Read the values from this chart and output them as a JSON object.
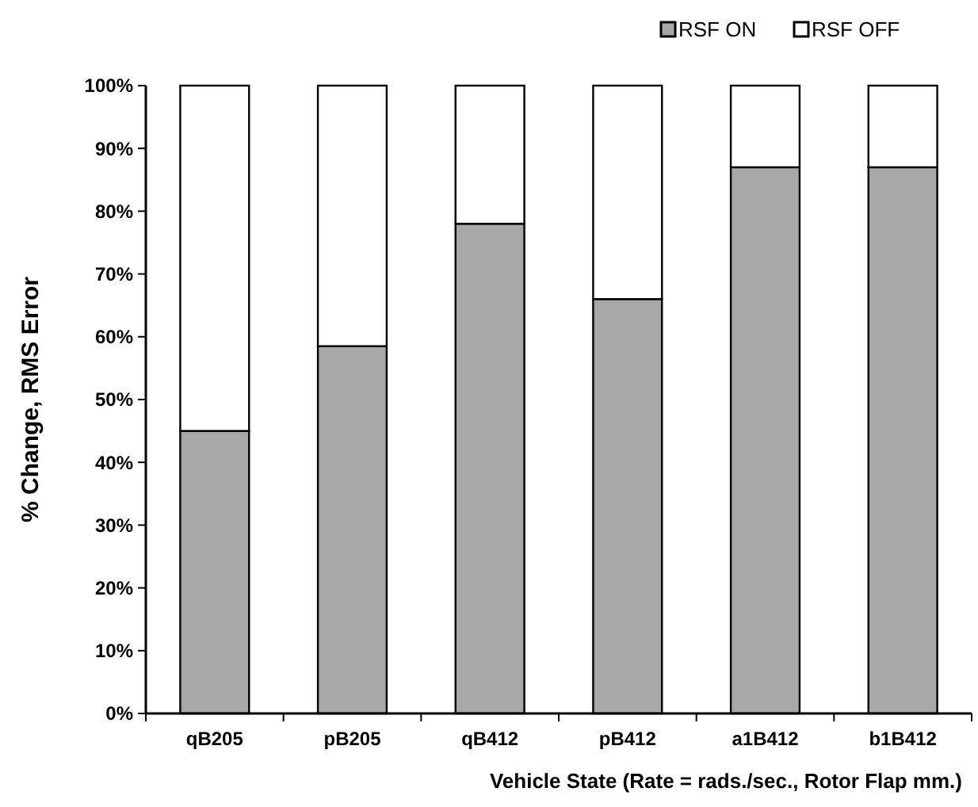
{
  "chart_data": {
    "type": "bar",
    "stacked": true,
    "xlabel": "Vehicle State (Rate = rads./sec., Rotor Flap mm.)",
    "ylabel": "% Change, RMS Error",
    "categories": [
      "qB205",
      "pB205",
      "qB412",
      "pB412",
      "a1B412",
      "b1B412"
    ],
    "series": [
      {
        "name": "RSF ON",
        "color": "#a8a8a8",
        "values": [
          45,
          58.5,
          78,
          66,
          87,
          87
        ]
      },
      {
        "name": "RSF OFF",
        "color": "#ffffff",
        "values": [
          55,
          41.5,
          22,
          34,
          13,
          13
        ]
      }
    ],
    "ylim": [
      0,
      100
    ],
    "yticks": [
      {
        "value": 0,
        "label": "0%"
      },
      {
        "value": 10,
        "label": "10%"
      },
      {
        "value": 20,
        "label": "20%"
      },
      {
        "value": 30,
        "label": "30%"
      },
      {
        "value": 40,
        "label": "40%"
      },
      {
        "value": 50,
        "label": "50%"
      },
      {
        "value": 60,
        "label": "60%"
      },
      {
        "value": 70,
        "label": "70%"
      },
      {
        "value": 80,
        "label": "80%"
      },
      {
        "value": 90,
        "label": "90%"
      },
      {
        "value": 100,
        "label": "100%"
      }
    ],
    "legend": "top right"
  }
}
